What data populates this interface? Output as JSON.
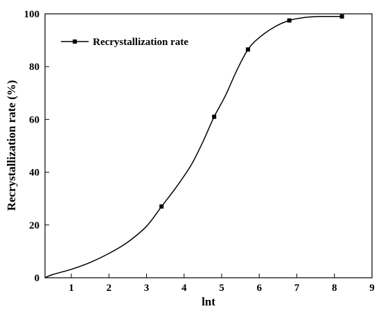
{
  "chart_data": {
    "type": "line",
    "xlabel": "lnt",
    "ylabel": "Recrystallization rate (%)",
    "xlim": [
      0.3,
      9
    ],
    "ylim": [
      0,
      100
    ],
    "x_ticks": [
      1,
      2,
      3,
      4,
      5,
      6,
      7,
      8,
      9
    ],
    "y_ticks": [
      0,
      20,
      40,
      60,
      80,
      100
    ],
    "grid": false,
    "legend_position": "top-left",
    "series": [
      {
        "name": "Recrystallization rate",
        "color": "#000000",
        "marker": "square",
        "points": [
          {
            "x": 3.4,
            "y": 27
          },
          {
            "x": 4.8,
            "y": 61
          },
          {
            "x": 5.7,
            "y": 86.5
          },
          {
            "x": 6.8,
            "y": 97.5
          },
          {
            "x": 8.2,
            "y": 99
          }
        ],
        "curve": [
          [
            0.3,
            0
          ],
          [
            0.5,
            1.2
          ],
          [
            1.0,
            3.2
          ],
          [
            1.5,
            5.8
          ],
          [
            2.0,
            9.2
          ],
          [
            2.5,
            13.5
          ],
          [
            3.0,
            19.5
          ],
          [
            3.4,
            27
          ],
          [
            3.8,
            34.5
          ],
          [
            4.2,
            43
          ],
          [
            4.5,
            51.5
          ],
          [
            4.8,
            61
          ],
          [
            5.1,
            69
          ],
          [
            5.4,
            78.5
          ],
          [
            5.7,
            86.5
          ],
          [
            6.0,
            91
          ],
          [
            6.4,
            95
          ],
          [
            6.8,
            97.5
          ],
          [
            7.2,
            98.6
          ],
          [
            7.6,
            99
          ],
          [
            8.2,
            99
          ]
        ]
      }
    ]
  }
}
